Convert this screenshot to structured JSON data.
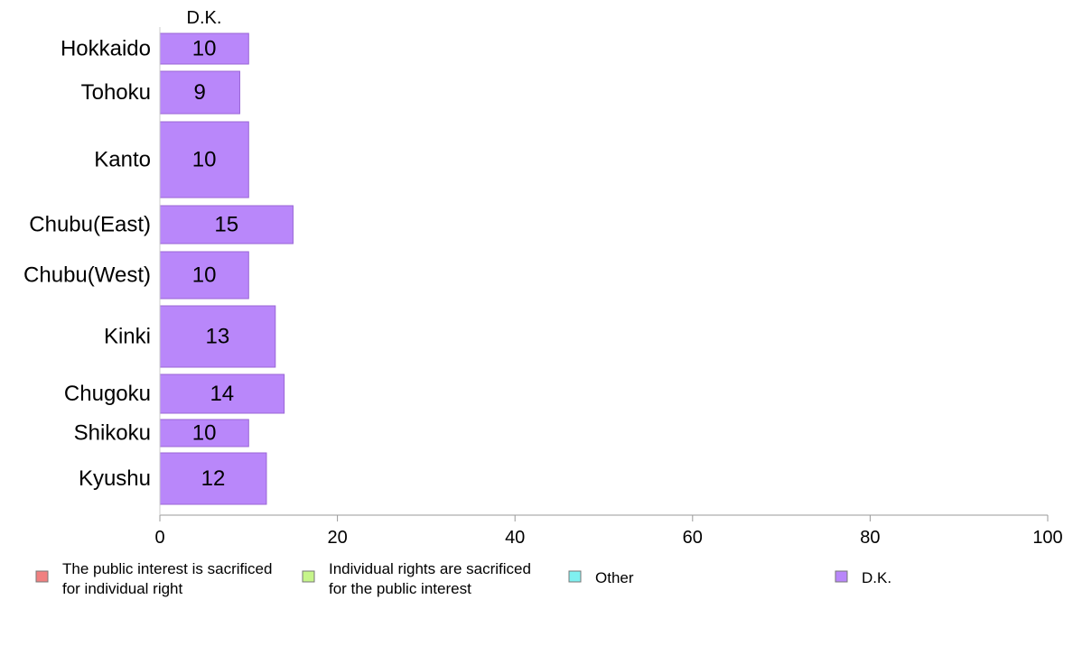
{
  "chart_data": {
    "type": "bar",
    "orientation": "horizontal",
    "stacked": true,
    "categories": [
      "Hokkaido",
      "Tohoku",
      "Kanto",
      "Chubu(East)",
      "Chubu(West)",
      "Kinki",
      "Chugoku",
      "Shikoku",
      "Kyushu"
    ],
    "series": [
      {
        "name": "The public interest is sacrificed for individual right",
        "legend_lines": [
          "The public interest is sacrificed",
          "for individual right"
        ],
        "color": "#f08080",
        "values": [
          null,
          null,
          null,
          null,
          null,
          null,
          null,
          null,
          null
        ]
      },
      {
        "name": "Individual rights are sacrificed for the public interest",
        "legend_lines": [
          "Individual rights are sacrificed",
          "for the public interest"
        ],
        "color": "#c6f58a",
        "values": [
          null,
          null,
          null,
          null,
          null,
          null,
          null,
          null,
          null
        ]
      },
      {
        "name": "Other",
        "legend_lines": [
          "Other"
        ],
        "color": "#7ff0f0",
        "values": [
          null,
          null,
          null,
          null,
          null,
          null,
          null,
          null,
          null
        ]
      },
      {
        "name": "D.K.",
        "legend_lines": [
          "D.K."
        ],
        "color": "#b987fa",
        "values": [
          10,
          9,
          10,
          15,
          10,
          13,
          14,
          10,
          12
        ]
      }
    ],
    "value_labels": [
      "10",
      "9",
      "10",
      "15",
      "10",
      "13",
      "14",
      "10",
      "12"
    ],
    "visible_series_header": "D.K.",
    "xlim": [
      0,
      100
    ],
    "xticks": [
      0,
      20,
      40,
      60,
      80,
      100
    ],
    "grid": false,
    "legend_position": "bottom"
  }
}
